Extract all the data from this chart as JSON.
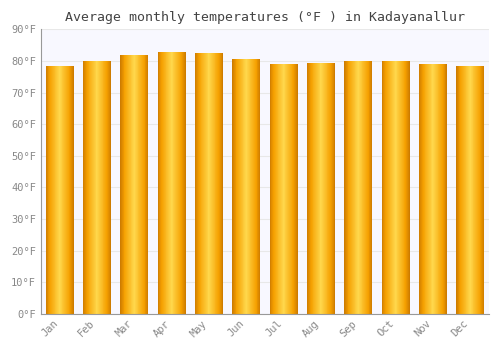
{
  "months": [
    "Jan",
    "Feb",
    "Mar",
    "Apr",
    "May",
    "Jun",
    "Jul",
    "Aug",
    "Sep",
    "Oct",
    "Nov",
    "Dec"
  ],
  "values": [
    78.5,
    80.0,
    82.0,
    83.0,
    82.5,
    80.5,
    79.0,
    79.5,
    80.0,
    80.0,
    79.0,
    78.5
  ],
  "title": "Average monthly temperatures (°F ) in Kadayanallur",
  "bar_color_center": "#FFD84D",
  "bar_color_edge": "#F5A000",
  "bar_color_dark_edge": "#CC7A00",
  "background_color": "#FFFFFF",
  "plot_bg_color": "#F8F8FF",
  "grid_color": "#E8E8E8",
  "ylabel_ticks": [
    "0°F",
    "10°F",
    "20°F",
    "30°F",
    "40°F",
    "50°F",
    "60°F",
    "70°F",
    "80°F",
    "90°F"
  ],
  "ylim": [
    0,
    90
  ],
  "tick_fontsize": 7.5,
  "title_fontsize": 9.5,
  "title_font": "monospace",
  "tick_color": "#888888"
}
